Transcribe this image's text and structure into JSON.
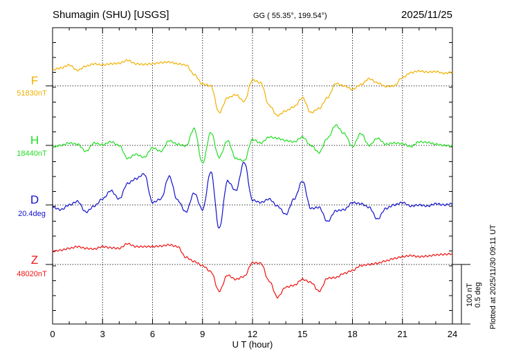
{
  "header": {
    "station": "Shumagin (SHU)  [USGS]",
    "coords": "GG ( 55.35°, 199.54°)",
    "date": "2025/11/25"
  },
  "plotted_note": "Plotted at 2025/11/30 09:11 UT",
  "scale": {
    "nt": "100 nT",
    "deg": "0.5 deg"
  },
  "colors": {
    "F": "#f0b000",
    "H": "#22dd22",
    "D": "#1010cc",
    "Z": "#ee1111"
  },
  "chart_data": {
    "type": "line",
    "title": "Shumagin (SHU)  [USGS]",
    "xlabel": "U T (hour)",
    "xlim": [
      0,
      24
    ],
    "xticks": [
      0,
      3,
      6,
      9,
      12,
      15,
      18,
      21,
      24
    ],
    "tick_labels": [
      "0",
      "3",
      "6",
      "9",
      "12",
      "15",
      "18",
      "21",
      "24"
    ],
    "grid": true,
    "scale_bar": "100 nT / 0.5 deg",
    "series": [
      {
        "key": "F",
        "name": "F",
        "baseline": "51830nT",
        "unit": "nT",
        "x": [
          0,
          0.5,
          1,
          1.5,
          2,
          2.5,
          3,
          3.5,
          4,
          4.5,
          5,
          5.5,
          6,
          6.5,
          7,
          7.5,
          8,
          8.5,
          9,
          9.5,
          10,
          10.5,
          11,
          11.5,
          12,
          12.5,
          13,
          13.5,
          14,
          14.5,
          15,
          15.5,
          16,
          16.5,
          17,
          17.5,
          18,
          18.5,
          19,
          19.5,
          20,
          20.5,
          21,
          21.5,
          22,
          22.5,
          23,
          23.5,
          24
        ],
        "values": [
          27,
          30,
          35,
          26,
          33,
          37,
          35,
          37,
          38,
          43,
          37,
          36,
          37,
          39,
          40,
          37,
          35,
          19,
          3,
          0,
          -45,
          -20,
          -15,
          -26,
          10,
          5,
          -33,
          -50,
          -42,
          -35,
          -20,
          -45,
          -38,
          -20,
          4,
          0,
          -6,
          2,
          12,
          5,
          -1,
          0,
          14,
          22,
          25,
          23,
          24,
          21,
          23
        ]
      },
      {
        "key": "H",
        "name": "H",
        "baseline": "18440nT",
        "unit": "nT",
        "x": [
          0,
          0.5,
          1,
          1.5,
          2,
          2.5,
          3,
          3.5,
          4,
          4.5,
          5,
          5.5,
          6,
          6.5,
          7,
          7.5,
          8,
          8.5,
          9,
          9.5,
          10,
          10.5,
          11,
          11.5,
          12,
          12.5,
          13,
          13.5,
          14,
          14.5,
          15,
          15.5,
          16,
          16.5,
          17,
          17.5,
          18,
          18.5,
          19,
          19.5,
          20,
          20.5,
          21,
          21.5,
          22,
          22.5,
          23,
          23.5,
          24
        ],
        "values": [
          -2,
          0,
          4,
          2,
          -10,
          4,
          1,
          6,
          0,
          -22,
          -15,
          -20,
          -4,
          -10,
          8,
          2,
          -1,
          28,
          -30,
          22,
          -20,
          8,
          -22,
          -26,
          10,
          4,
          14,
          12,
          8,
          6,
          14,
          0,
          -12,
          12,
          34,
          20,
          -2,
          20,
          0,
          12,
          2,
          4,
          3,
          -2,
          6,
          5,
          2,
          0,
          -1
        ]
      },
      {
        "key": "D",
        "name": "D",
        "baseline": "20.4deg",
        "unit": "deg",
        "x": [
          0,
          0.5,
          1,
          1.5,
          2,
          2.5,
          3,
          3.5,
          4,
          4.5,
          5,
          5.5,
          6,
          6.5,
          7,
          7.5,
          8,
          8.5,
          9,
          9.5,
          10,
          10.5,
          11,
          11.5,
          12,
          12.5,
          13,
          13.5,
          14,
          14.5,
          15,
          15.5,
          16,
          16.5,
          17,
          17.5,
          18,
          18.5,
          19,
          19.5,
          20,
          20.5,
          21,
          21.5,
          22,
          22.5,
          23,
          23.5,
          24
        ],
        "values": [
          -0.02,
          -0.04,
          0.0,
          0.03,
          -0.06,
          -0.01,
          0.05,
          0.12,
          0.05,
          0.18,
          0.22,
          0.26,
          0.02,
          0.05,
          0.24,
          0.04,
          -0.06,
          0.1,
          -0.04,
          0.28,
          -0.2,
          0.2,
          0.12,
          0.36,
          0.04,
          0.02,
          0.05,
          -0.01,
          -0.08,
          0.05,
          0.2,
          -0.03,
          -0.02,
          -0.14,
          -0.05,
          -0.04,
          0.02,
          0.01,
          -0.02,
          -0.12,
          -0.03,
          0.0,
          0.02,
          -0.01,
          0.0,
          -0.01,
          0.01,
          0.0,
          0.01
        ]
      },
      {
        "key": "Z",
        "name": "Z",
        "baseline": "48020nT",
        "unit": "nT",
        "x": [
          0,
          0.5,
          1,
          1.5,
          2,
          2.5,
          3,
          3.5,
          4,
          4.5,
          5,
          5.5,
          6,
          6.5,
          7,
          7.5,
          8,
          8.5,
          9,
          9.5,
          10,
          10.5,
          11,
          11.5,
          12,
          12.5,
          13,
          13.5,
          14,
          14.5,
          15,
          15.5,
          16,
          16.5,
          17,
          17.5,
          18,
          18.5,
          19,
          19.5,
          20,
          20.5,
          21,
          21.5,
          22,
          22.5,
          23,
          23.5,
          24
        ],
        "values": [
          22,
          24,
          27,
          30,
          27,
          26,
          30,
          28,
          27,
          35,
          30,
          30,
          30,
          31,
          33,
          30,
          12,
          5,
          -2,
          -12,
          -45,
          -18,
          -25,
          -20,
          3,
          2,
          -28,
          -55,
          -38,
          -35,
          -25,
          -30,
          -45,
          -23,
          -22,
          -15,
          -10,
          -2,
          0,
          2,
          6,
          10,
          13,
          15,
          13,
          14,
          16,
          17,
          18
        ]
      }
    ]
  }
}
